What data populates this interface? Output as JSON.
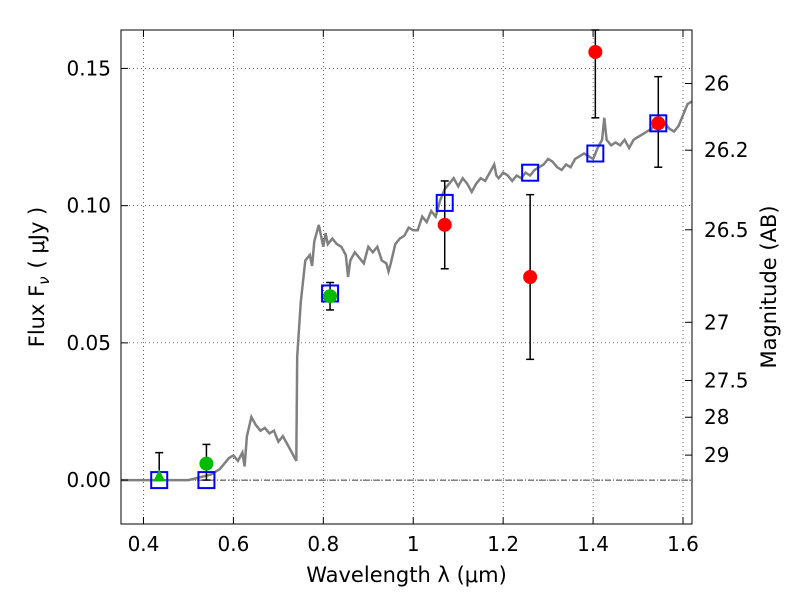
{
  "chart_data": {
    "type": "scatter",
    "xlabel": "Wavelength  λ (μm)",
    "ylabel": "Flux  F",
    "ylabel_sub": "ν",
    "ylabel_unit": "(  μJy )",
    "y2label": "Magnitude (AB)",
    "xlim": [
      0.35,
      1.62
    ],
    "ylim": [
      -0.016,
      0.164
    ],
    "grid": true,
    "x_ticks": [
      {
        "value": 0.4,
        "label": "0.4"
      },
      {
        "value": 0.6,
        "label": "0.6"
      },
      {
        "value": 0.8,
        "label": "0.8"
      },
      {
        "value": 1.0,
        "label": "1"
      },
      {
        "value": 1.2,
        "label": "1.2"
      },
      {
        "value": 1.4,
        "label": "1.4"
      },
      {
        "value": 1.6,
        "label": "1.6"
      }
    ],
    "y_ticks": [
      {
        "value": 0.0,
        "label": "0.00"
      },
      {
        "value": 0.05,
        "label": "0.05"
      },
      {
        "value": 0.1,
        "label": "0.10"
      },
      {
        "value": 0.15,
        "label": "0.15"
      }
    ],
    "y2_ticks": [
      {
        "mag": "26",
        "flux": 0.1445
      },
      {
        "mag": "26.2",
        "flux": 0.1202
      },
      {
        "mag": "26.5",
        "flux": 0.0912
      },
      {
        "mag": "27",
        "flux": 0.0575
      },
      {
        "mag": "27.5",
        "flux": 0.0363
      },
      {
        "mag": "28",
        "flux": 0.0229
      },
      {
        "mag": "29",
        "flux": 0.0091
      }
    ],
    "zero_line": 0.0,
    "sed_model": {
      "color": "#808080",
      "points": [
        [
          0.35,
          0.0
        ],
        [
          0.5,
          0.0
        ],
        [
          0.55,
          0.002
        ],
        [
          0.57,
          0.004
        ],
        [
          0.58,
          0.006
        ],
        [
          0.59,
          0.008
        ],
        [
          0.6,
          0.009
        ],
        [
          0.61,
          0.007
        ],
        [
          0.62,
          0.01
        ],
        [
          0.625,
          0.005
        ],
        [
          0.63,
          0.016
        ],
        [
          0.64,
          0.023
        ],
        [
          0.65,
          0.02
        ],
        [
          0.66,
          0.018
        ],
        [
          0.67,
          0.019
        ],
        [
          0.68,
          0.017
        ],
        [
          0.69,
          0.018
        ],
        [
          0.7,
          0.014
        ],
        [
          0.71,
          0.016
        ],
        [
          0.72,
          0.013
        ],
        [
          0.73,
          0.01
        ],
        [
          0.74,
          0.007
        ],
        [
          0.742,
          0.045
        ],
        [
          0.75,
          0.065
        ],
        [
          0.76,
          0.08
        ],
        [
          0.77,
          0.082
        ],
        [
          0.775,
          0.078
        ],
        [
          0.78,
          0.087
        ],
        [
          0.79,
          0.093
        ],
        [
          0.8,
          0.085
        ],
        [
          0.805,
          0.09
        ],
        [
          0.81,
          0.086
        ],
        [
          0.82,
          0.088
        ],
        [
          0.83,
          0.086
        ],
        [
          0.84,
          0.085
        ],
        [
          0.85,
          0.082
        ],
        [
          0.855,
          0.074
        ],
        [
          0.86,
          0.08
        ],
        [
          0.87,
          0.083
        ],
        [
          0.88,
          0.081
        ],
        [
          0.89,
          0.079
        ],
        [
          0.9,
          0.085
        ],
        [
          0.91,
          0.083
        ],
        [
          0.92,
          0.085
        ],
        [
          0.93,
          0.08
        ],
        [
          0.94,
          0.079
        ],
        [
          0.945,
          0.076
        ],
        [
          0.95,
          0.079
        ],
        [
          0.96,
          0.086
        ],
        [
          0.97,
          0.088
        ],
        [
          0.98,
          0.089
        ],
        [
          0.99,
          0.092
        ],
        [
          1.0,
          0.091
        ],
        [
          1.01,
          0.091
        ],
        [
          1.02,
          0.096
        ],
        [
          1.03,
          0.094
        ],
        [
          1.04,
          0.098
        ],
        [
          1.05,
          0.096
        ],
        [
          1.06,
          0.102
        ],
        [
          1.07,
          0.106
        ],
        [
          1.08,
          0.108
        ],
        [
          1.09,
          0.11
        ],
        [
          1.1,
          0.107
        ],
        [
          1.11,
          0.11
        ],
        [
          1.12,
          0.108
        ],
        [
          1.13,
          0.105
        ],
        [
          1.14,
          0.108
        ],
        [
          1.15,
          0.11
        ],
        [
          1.16,
          0.109
        ],
        [
          1.17,
          0.112
        ],
        [
          1.18,
          0.115
        ],
        [
          1.185,
          0.111
        ],
        [
          1.19,
          0.11
        ],
        [
          1.2,
          0.112
        ],
        [
          1.21,
          0.111
        ],
        [
          1.22,
          0.109
        ],
        [
          1.23,
          0.111
        ],
        [
          1.24,
          0.11
        ],
        [
          1.25,
          0.112
        ],
        [
          1.26,
          0.111
        ],
        [
          1.27,
          0.113
        ],
        [
          1.28,
          0.114
        ],
        [
          1.29,
          0.115
        ],
        [
          1.3,
          0.117
        ],
        [
          1.31,
          0.116
        ],
        [
          1.32,
          0.114
        ],
        [
          1.33,
          0.113
        ],
        [
          1.34,
          0.115
        ],
        [
          1.35,
          0.114
        ],
        [
          1.36,
          0.117
        ],
        [
          1.37,
          0.118
        ],
        [
          1.38,
          0.119
        ],
        [
          1.39,
          0.118
        ],
        [
          1.4,
          0.117
        ],
        [
          1.41,
          0.121
        ],
        [
          1.42,
          0.124
        ],
        [
          1.425,
          0.132
        ],
        [
          1.43,
          0.124
        ],
        [
          1.44,
          0.122
        ],
        [
          1.45,
          0.123
        ],
        [
          1.46,
          0.122
        ],
        [
          1.47,
          0.124
        ],
        [
          1.48,
          0.121
        ],
        [
          1.49,
          0.124
        ],
        [
          1.5,
          0.125
        ],
        [
          1.51,
          0.126
        ],
        [
          1.52,
          0.127
        ],
        [
          1.53,
          0.128
        ],
        [
          1.54,
          0.13
        ],
        [
          1.55,
          0.131
        ],
        [
          1.56,
          0.13
        ],
        [
          1.57,
          0.128
        ],
        [
          1.58,
          0.127
        ],
        [
          1.59,
          0.129
        ],
        [
          1.6,
          0.133
        ],
        [
          1.61,
          0.137
        ],
        [
          1.62,
          0.138
        ]
      ]
    },
    "model_photometry": {
      "marker": "open-square",
      "color": "#0000ff",
      "points": [
        [
          0.435,
          0.0
        ],
        [
          0.54,
          0.0
        ],
        [
          0.815,
          0.068
        ],
        [
          1.07,
          0.101
        ],
        [
          1.26,
          0.112
        ],
        [
          1.405,
          0.119
        ],
        [
          1.545,
          0.13
        ]
      ]
    },
    "detections_red": {
      "marker": "filled-circle",
      "color": "#ff0000",
      "points": [
        {
          "x": 1.07,
          "y": 0.093,
          "ylow": 0.077,
          "yhigh": 0.109
        },
        {
          "x": 1.26,
          "y": 0.074,
          "ylow": 0.044,
          "yhigh": 0.104
        },
        {
          "x": 1.405,
          "y": 0.156,
          "ylow": 0.132,
          "yhigh": 0.164
        },
        {
          "x": 1.545,
          "y": 0.13,
          "ylow": 0.114,
          "yhigh": 0.147
        }
      ]
    },
    "detections_green": {
      "marker": "filled-circle",
      "color": "#00bb00",
      "points": [
        {
          "x": 0.54,
          "y": 0.006,
          "ylow": 0.0,
          "yhigh": 0.013
        },
        {
          "x": 0.815,
          "y": 0.067,
          "ylow": 0.062,
          "yhigh": 0.072
        }
      ]
    },
    "upper_limit_green": {
      "marker": "triangle-up",
      "color": "#00bb00",
      "points": [
        {
          "x": 0.435,
          "y": 0.001,
          "ylow": 0.0,
          "yhigh": 0.01
        }
      ]
    }
  }
}
